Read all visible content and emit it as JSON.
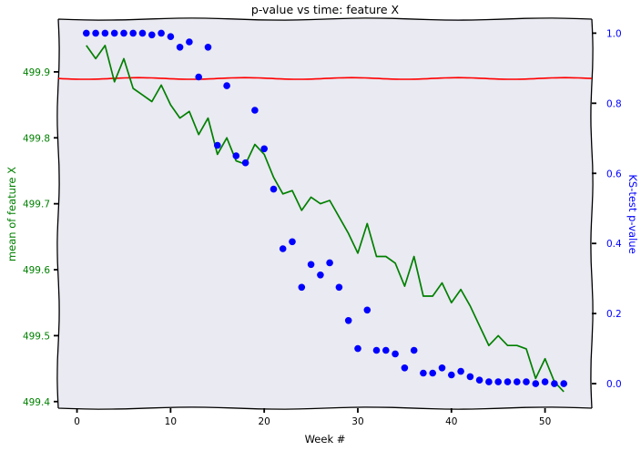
{
  "chart_data": {
    "type": "line",
    "title": "p-value vs time: feature X",
    "xlabel": "Week #",
    "ylabel_left": "mean of feature X",
    "ylabel_right": "KS-test p-value",
    "xlim": [
      -2,
      55
    ],
    "ylim_left": [
      499.39,
      499.98
    ],
    "ylim_right": [
      -0.07,
      1.04
    ],
    "x_ticks": [
      0,
      10,
      20,
      30,
      40,
      50
    ],
    "y_left_ticks": [
      499.4,
      499.5,
      499.6,
      499.7,
      499.8,
      499.9
    ],
    "y_right_ticks": [
      0.0,
      0.2,
      0.4,
      0.6,
      0.8,
      1.0
    ],
    "grid": false,
    "colors": {
      "background": "#eaeaf2",
      "mean_line": "#008000",
      "reference_line": "#ff0000",
      "pvalue_points": "#0000ff",
      "left_axis_text": "#008000",
      "right_axis_text": "#0000ff"
    },
    "series": [
      {
        "axis": "left",
        "kind": "line",
        "color": "#008000",
        "x": [
          1,
          2,
          3,
          4,
          5,
          6,
          7,
          8,
          9,
          10,
          11,
          12,
          13,
          14,
          15,
          16,
          17,
          18,
          19,
          20,
          21,
          22,
          23,
          24,
          25,
          26,
          27,
          28,
          29,
          30,
          31,
          32,
          33,
          34,
          35,
          36,
          37,
          38,
          39,
          40,
          41,
          42,
          43,
          44,
          45,
          46,
          47,
          48,
          49,
          50,
          51,
          52
        ],
        "values": [
          499.94,
          499.92,
          499.94,
          499.885,
          499.92,
          499.875,
          499.865,
          499.855,
          499.88,
          499.85,
          499.83,
          499.84,
          499.805,
          499.83,
          499.775,
          499.8,
          499.765,
          499.76,
          499.79,
          499.775,
          499.74,
          499.715,
          499.72,
          499.69,
          499.71,
          499.7,
          499.705,
          499.68,
          499.655,
          499.625,
          499.67,
          499.62,
          499.62,
          499.61,
          499.575,
          499.62,
          499.56,
          499.56,
          499.58,
          499.55,
          499.57,
          499.545,
          499.515,
          499.485,
          499.5,
          499.485,
          499.485,
          499.48,
          499.435,
          499.465,
          499.43,
          499.415
        ]
      },
      {
        "axis": "left",
        "kind": "line",
        "color": "#ff0000",
        "x": [
          -2,
          55
        ],
        "values": [
          499.89,
          499.89
        ]
      },
      {
        "axis": "right",
        "kind": "scatter",
        "color": "#0000ff",
        "x": [
          1,
          2,
          3,
          4,
          5,
          6,
          7,
          8,
          9,
          10,
          11,
          12,
          13,
          14,
          15,
          16,
          17,
          18,
          19,
          20,
          21,
          22,
          23,
          24,
          25,
          26,
          27,
          28,
          29,
          30,
          31,
          32,
          33,
          34,
          35,
          36,
          37,
          38,
          39,
          40,
          41,
          42,
          43,
          44,
          45,
          46,
          47,
          48,
          49,
          50,
          51,
          52
        ],
        "values": [
          1.0,
          1.0,
          1.0,
          1.0,
          1.0,
          1.0,
          1.0,
          0.995,
          1.0,
          0.99,
          0.96,
          0.975,
          0.875,
          0.96,
          0.68,
          0.85,
          0.65,
          0.63,
          0.78,
          0.67,
          0.555,
          0.385,
          0.405,
          0.275,
          0.34,
          0.31,
          0.345,
          0.275,
          0.18,
          0.1,
          0.21,
          0.095,
          0.095,
          0.085,
          0.045,
          0.095,
          0.03,
          0.03,
          0.045,
          0.025,
          0.035,
          0.02,
          0.01,
          0.005,
          0.005,
          0.005,
          0.005,
          0.005,
          0.0,
          0.005,
          0.0,
          0.0
        ]
      }
    ]
  }
}
